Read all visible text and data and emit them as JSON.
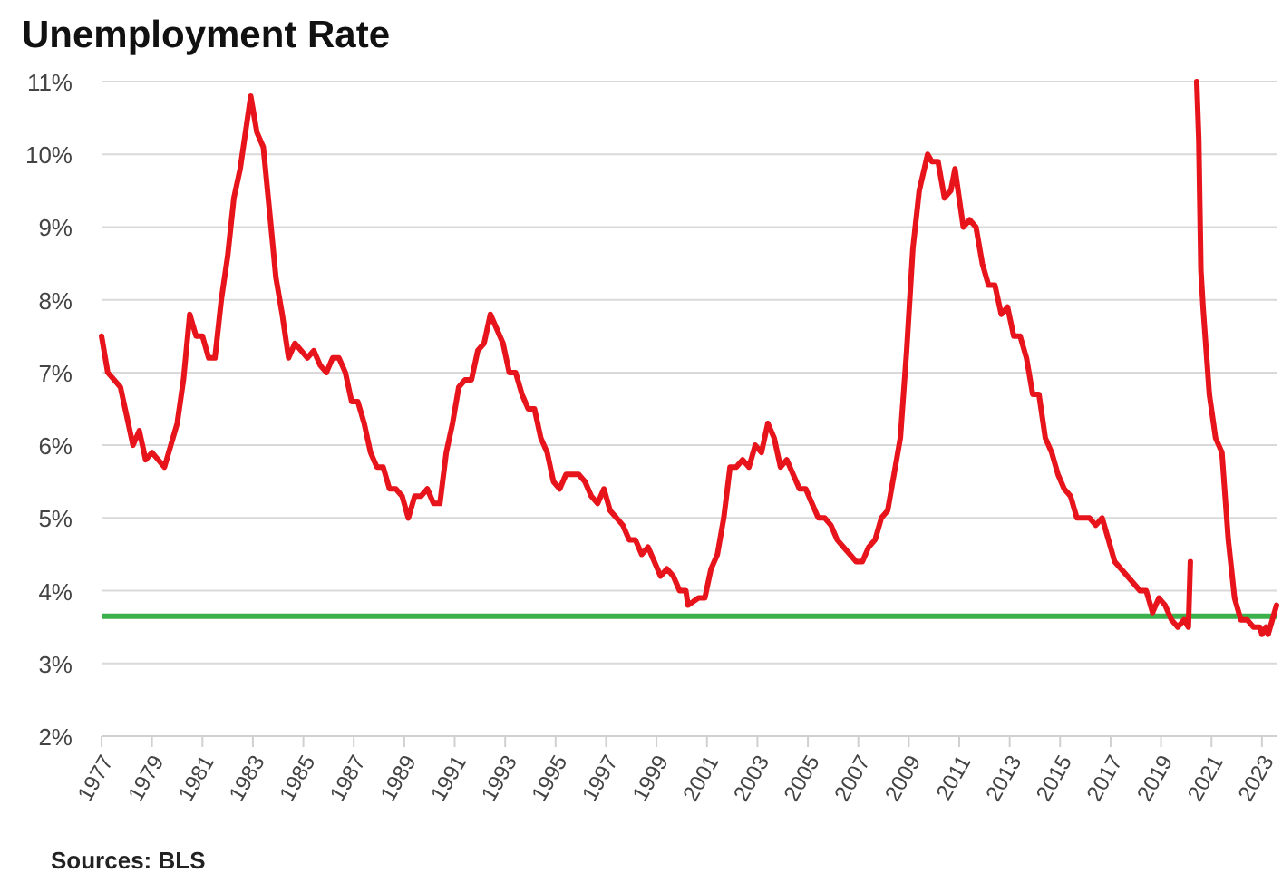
{
  "chart_data": {
    "type": "line",
    "title": "Unemployment Rate",
    "annotations": [
      "Sources: BLS"
    ],
    "xlim": [
      "1977-01",
      "2023-08"
    ],
    "xticks": [
      "1977",
      "1979",
      "1981",
      "1983",
      "1985",
      "1987",
      "1989",
      "1991",
      "1993",
      "1995",
      "1997",
      "1999",
      "2001",
      "2003",
      "2005",
      "2007",
      "2009",
      "2011",
      "2013",
      "2015",
      "2017",
      "2019",
      "2021",
      "2023"
    ],
    "ylim": [
      2,
      11
    ],
    "yticks": [
      {
        "value": 2,
        "label": "2%"
      },
      {
        "value": 3,
        "label": "3%"
      },
      {
        "value": 4,
        "label": "4%"
      },
      {
        "value": 5,
        "label": "5%"
      },
      {
        "value": 6,
        "label": "6%"
      },
      {
        "value": 7,
        "label": "7%"
      },
      {
        "value": 8,
        "label": "8%"
      },
      {
        "value": 9,
        "label": "9%"
      },
      {
        "value": 10,
        "label": "10%"
      },
      {
        "value": 11,
        "label": "11%"
      }
    ],
    "grid": "y",
    "line_style": "solid",
    "ref_lines": [
      {
        "axis": "y",
        "value": 3.65,
        "color": "#3cb04a"
      }
    ],
    "series": [
      {
        "color": "#e8141b",
        "x": [
          "1977-01",
          "1977-04",
          "1977-07",
          "1977-10",
          "1978-01",
          "1978-04",
          "1978-07",
          "1978-10",
          "1979-01",
          "1979-04",
          "1979-07",
          "1979-10",
          "1980-01",
          "1980-04",
          "1980-07",
          "1980-10",
          "1981-01",
          "1981-04",
          "1981-07",
          "1981-10",
          "1982-01",
          "1982-04",
          "1982-07",
          "1982-10",
          "1982-12",
          "1983-03",
          "1983-06",
          "1983-09",
          "1983-12",
          "1984-03",
          "1984-06",
          "1984-09",
          "1984-12",
          "1985-03",
          "1985-06",
          "1985-09",
          "1985-12",
          "1986-03",
          "1986-06",
          "1986-09",
          "1986-12",
          "1987-03",
          "1987-06",
          "1987-09",
          "1987-12",
          "1988-03",
          "1988-06",
          "1988-09",
          "1988-12",
          "1989-03",
          "1989-06",
          "1989-09",
          "1989-12",
          "1990-03",
          "1990-06",
          "1990-09",
          "1990-12",
          "1991-03",
          "1991-06",
          "1991-09",
          "1991-12",
          "1992-03",
          "1992-06",
          "1992-09",
          "1992-12",
          "1993-03",
          "1993-06",
          "1993-09",
          "1993-12",
          "1994-03",
          "1994-06",
          "1994-09",
          "1994-12",
          "1995-03",
          "1995-06",
          "1995-09",
          "1995-12",
          "1996-03",
          "1996-06",
          "1996-09",
          "1996-12",
          "1997-03",
          "1997-06",
          "1997-09",
          "1997-12",
          "1998-03",
          "1998-06",
          "1998-09",
          "1998-12",
          "1999-03",
          "1999-06",
          "1999-09",
          "1999-12",
          "2000-03",
          "2000-04",
          "2000-09",
          "2000-12",
          "2001-03",
          "2001-06",
          "2001-09",
          "2001-12",
          "2002-03",
          "2002-06",
          "2002-09",
          "2002-12",
          "2003-03",
          "2003-06",
          "2003-09",
          "2003-12",
          "2004-03",
          "2004-06",
          "2004-09",
          "2004-12",
          "2005-03",
          "2005-06",
          "2005-09",
          "2005-12",
          "2006-03",
          "2006-06",
          "2006-09",
          "2006-12",
          "2007-03",
          "2007-06",
          "2007-09",
          "2007-12",
          "2008-03",
          "2008-06",
          "2008-09",
          "2008-12",
          "2009-03",
          "2009-06",
          "2009-10",
          "2009-12",
          "2010-03",
          "2010-06",
          "2010-09",
          "2010-11",
          "2011-03",
          "2011-06",
          "2011-09",
          "2011-12",
          "2012-03",
          "2012-06",
          "2012-09",
          "2012-12",
          "2013-03",
          "2013-06",
          "2013-09",
          "2013-12",
          "2014-03",
          "2014-06",
          "2014-09",
          "2014-12",
          "2015-03",
          "2015-06",
          "2015-09",
          "2015-12",
          "2016-03",
          "2016-06",
          "2016-09",
          "2016-12",
          "2017-03",
          "2017-06",
          "2017-09",
          "2017-12",
          "2018-03",
          "2018-06",
          "2018-09",
          "2018-12",
          "2019-03",
          "2019-06",
          "2019-09",
          "2019-12",
          "2020-02",
          "2020-03",
          "2020-04",
          "2020-05",
          "2020-06",
          "2020-07",
          "2020-08",
          "2020-09",
          "2020-12",
          "2021-03",
          "2021-06",
          "2021-09",
          "2021-12",
          "2022-03",
          "2022-06",
          "2022-09",
          "2022-12",
          "2023-01",
          "2023-03",
          "2023-04",
          "2023-06",
          "2023-08"
        ],
        "values": [
          7.5,
          7.0,
          6.9,
          6.8,
          6.4,
          6.0,
          6.2,
          5.8,
          5.9,
          5.8,
          5.7,
          6.0,
          6.3,
          6.9,
          7.8,
          7.5,
          7.5,
          7.2,
          7.2,
          8.0,
          8.6,
          9.4,
          9.8,
          10.4,
          10.8,
          10.3,
          10.1,
          9.2,
          8.3,
          7.8,
          7.2,
          7.4,
          7.3,
          7.2,
          7.3,
          7.1,
          7.0,
          7.2,
          7.2,
          7.0,
          6.6,
          6.6,
          6.3,
          5.9,
          5.7,
          5.7,
          5.4,
          5.4,
          5.3,
          5.0,
          5.3,
          5.3,
          5.4,
          5.2,
          5.2,
          5.9,
          6.3,
          6.8,
          6.9,
          6.9,
          7.3,
          7.4,
          7.8,
          7.6,
          7.4,
          7.0,
          7.0,
          6.7,
          6.5,
          6.5,
          6.1,
          5.9,
          5.5,
          5.4,
          5.6,
          5.6,
          5.6,
          5.5,
          5.3,
          5.2,
          5.4,
          5.1,
          5.0,
          4.9,
          4.7,
          4.7,
          4.5,
          4.6,
          4.4,
          4.2,
          4.3,
          4.2,
          4.0,
          4.0,
          3.8,
          3.9,
          3.9,
          4.3,
          4.5,
          5.0,
          5.7,
          5.7,
          5.8,
          5.7,
          6.0,
          5.9,
          6.3,
          6.1,
          5.7,
          5.8,
          5.6,
          5.4,
          5.4,
          5.2,
          5.0,
          5.0,
          4.9,
          4.7,
          4.6,
          4.5,
          4.4,
          4.4,
          4.6,
          4.7,
          5.0,
          5.1,
          5.6,
          6.1,
          7.3,
          8.7,
          9.5,
          10.0,
          9.9,
          9.9,
          9.4,
          9.5,
          9.8,
          9.0,
          9.1,
          9.0,
          8.5,
          8.2,
          8.2,
          7.8,
          7.9,
          7.5,
          7.5,
          7.2,
          6.7,
          6.7,
          6.1,
          5.9,
          5.6,
          5.4,
          5.3,
          5.0,
          5.0,
          5.0,
          4.9,
          5.0,
          4.7,
          4.4,
          4.3,
          4.2,
          4.1,
          4.0,
          4.0,
          3.7,
          3.9,
          3.8,
          3.6,
          3.5,
          3.6,
          3.5,
          4.4,
          null,
          null,
          11.0,
          10.2,
          8.4,
          7.9,
          6.7,
          6.1,
          5.9,
          4.7,
          3.9,
          3.6,
          3.6,
          3.5,
          3.5,
          3.4,
          3.5,
          3.4,
          3.6,
          3.8
        ]
      }
    ]
  }
}
